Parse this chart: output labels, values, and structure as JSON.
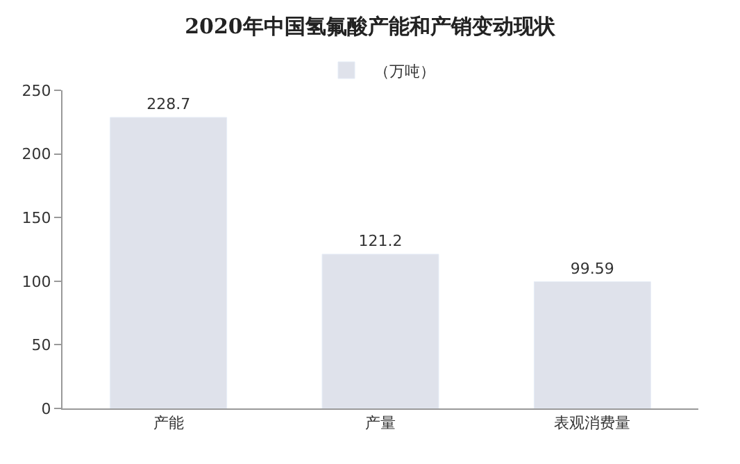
{
  "chart_data": {
    "type": "bar",
    "title": "2020年中国氢氟酸产能和产销变动现状",
    "categories": [
      "产能",
      "产量",
      "表观消费量"
    ],
    "series": [
      {
        "name": "（万吨）",
        "color": "#dfe2eb",
        "values": [
          228.7,
          121.2,
          99.59
        ]
      }
    ],
    "ylim": [
      0,
      250
    ],
    "yticks": [
      0,
      50,
      100,
      150,
      200,
      250
    ],
    "legend": "top",
    "data_labels": true
  }
}
